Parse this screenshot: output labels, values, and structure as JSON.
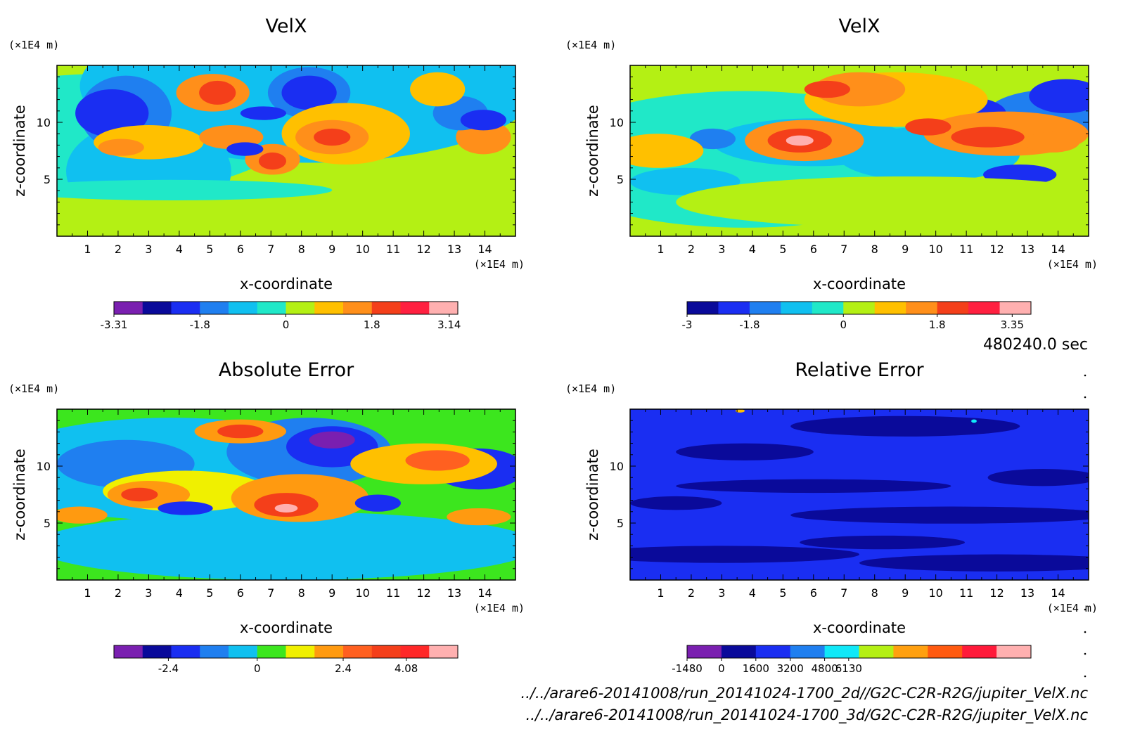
{
  "time_label": "480240.0 sec",
  "footer": {
    "line1": "../../arare6-20141008/run_20141024-1700_2d//G2C-C2R-R2G/jupiter_VelX.nc",
    "line2": "../../arare6-20141008/run_20141024-1700_3d/G2C-C2R-R2G/jupiter_VelX.nc"
  },
  "chart_data": [
    {
      "type": "heatmap",
      "title": "VelX",
      "xlabel": "x-coordinate",
      "ylabel": "z-coordinate",
      "x_unit": "(×1E4 m)",
      "y_unit": "(×1E4 m)",
      "xlim": [
        0,
        15
      ],
      "ylim": [
        0,
        15
      ],
      "xticks": [
        1,
        2,
        3,
        4,
        5,
        6,
        7,
        8,
        9,
        10,
        11,
        12,
        13,
        14
      ],
      "yticks": [
        5,
        10
      ],
      "colorbar": {
        "colors": [
          "#7a1fb0",
          "#0a0a9a",
          "#1a2ef2",
          "#1f7ff0",
          "#10c0f0",
          "#20e8c8",
          "#b4f014",
          "#ffc000",
          "#ff8f1a",
          "#f43f1a",
          "#ff2040",
          "#ffb0b0"
        ],
        "tick_labels": [
          "-3.31",
          "-1.8",
          "0",
          "1.8",
          "3.14"
        ],
        "tick_positions": [
          0,
          3,
          6,
          9,
          11.7
        ]
      }
    },
    {
      "type": "heatmap",
      "title": "VelX",
      "xlabel": "x-coordinate",
      "ylabel": "z-coordinate",
      "x_unit": "(×1E4 m)",
      "y_unit": "(×1E4 m)",
      "xlim": [
        0,
        15
      ],
      "ylim": [
        0,
        15
      ],
      "xticks": [
        1,
        2,
        3,
        4,
        5,
        6,
        7,
        8,
        9,
        10,
        11,
        12,
        13,
        14
      ],
      "yticks": [
        5,
        10
      ],
      "colorbar": {
        "colors": [
          "#0a0a9a",
          "#1a2ef2",
          "#1f7ff0",
          "#10c0f0",
          "#20e8c8",
          "#b4f014",
          "#ffc000",
          "#ff8f1a",
          "#f43f1a",
          "#ff2040",
          "#ffb0b0"
        ],
        "tick_labels": [
          "-3",
          "-1.8",
          "0",
          "1.8",
          "3.35"
        ],
        "tick_positions": [
          0,
          2,
          5,
          8,
          10.4
        ]
      }
    },
    {
      "type": "heatmap",
      "title": "Absolute Error",
      "xlabel": "x-coordinate",
      "ylabel": "z-coordinate",
      "x_unit": "(×1E4 m)",
      "y_unit": "(×1E4 m)",
      "xlim": [
        0,
        15
      ],
      "ylim": [
        0,
        15
      ],
      "xticks": [
        1,
        2,
        3,
        4,
        5,
        6,
        7,
        8,
        9,
        10,
        11,
        12,
        13,
        14
      ],
      "yticks": [
        5,
        10
      ],
      "colorbar": {
        "colors": [
          "#7a1fb0",
          "#0a0a9a",
          "#1a2ef2",
          "#1f7ff0",
          "#10c0f0",
          "#3ce61e",
          "#f0f000",
          "#ff9a10",
          "#ff6020",
          "#f43f1a",
          "#ff2828",
          "#ffb0b0"
        ],
        "tick_labels": [
          "-2.4",
          "0",
          "2.4",
          "4.08"
        ],
        "tick_positions": [
          1.9,
          5,
          8,
          10.2
        ]
      }
    },
    {
      "type": "heatmap",
      "title": "Relative Error",
      "xlabel": "x-coordinate",
      "ylabel": "z-coordinate",
      "x_unit": "(×1E4 m)",
      "y_unit": "(×1E4 m)",
      "xlim": [
        0,
        15
      ],
      "ylim": [
        0,
        15
      ],
      "xticks": [
        1,
        2,
        3,
        4,
        5,
        6,
        7,
        8,
        9,
        10,
        11,
        12,
        13,
        14
      ],
      "yticks": [
        5,
        10
      ],
      "colorbar": {
        "colors": [
          "#7a1fb0",
          "#0a0a9a",
          "#1a2ef2",
          "#1f7ff0",
          "#10e8f8",
          "#b4f014",
          "#ffa010",
          "#ff5a10",
          "#ff1a3a",
          "#ffb0b0"
        ],
        "tick_labels": [
          "-1480",
          "0",
          "1600",
          "3200",
          "4800",
          "6130"
        ],
        "tick_positions": [
          0,
          1,
          2,
          3,
          4,
          4.7
        ]
      }
    }
  ]
}
